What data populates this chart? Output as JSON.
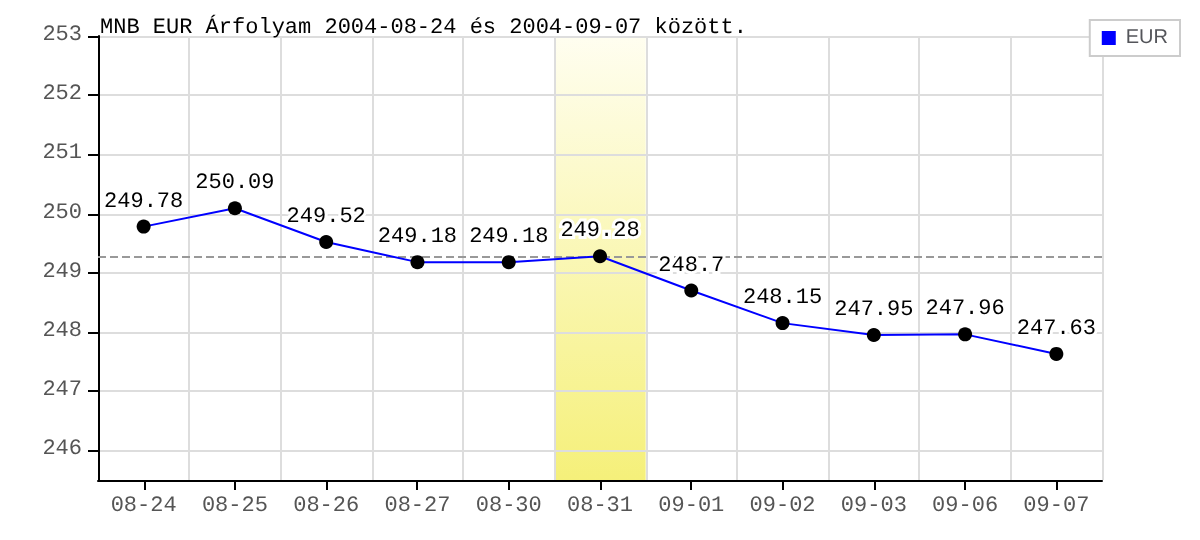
{
  "chart_data": {
    "type": "line",
    "title": "MNB EUR Árfolyam 2004-08-24 és 2004-09-07 között.",
    "categories": [
      "08-24",
      "08-25",
      "08-26",
      "08-27",
      "08-30",
      "08-31",
      "09-01",
      "09-02",
      "09-03",
      "09-06",
      "09-07"
    ],
    "series": [
      {
        "name": "EUR",
        "color": "#0000ff",
        "values": [
          249.78,
          250.09,
          249.52,
          249.18,
          249.18,
          249.28,
          248.7,
          248.15,
          247.95,
          247.96,
          247.63
        ]
      }
    ],
    "ylim": [
      245.5,
      253
    ],
    "yticks": [
      246,
      247,
      248,
      249,
      250,
      251,
      252,
      253
    ],
    "ref_lines": [
      {
        "axis": "y",
        "value": 249.28,
        "color": "#999999",
        "line_style": "dashed"
      }
    ],
    "bands": [
      {
        "axis": "x",
        "from": "08-31",
        "to": "08-31",
        "color": "#f5f07a"
      }
    ],
    "data_labels": true,
    "grid": true,
    "legend": "top right",
    "marker": "circle",
    "line_style": "solid"
  }
}
